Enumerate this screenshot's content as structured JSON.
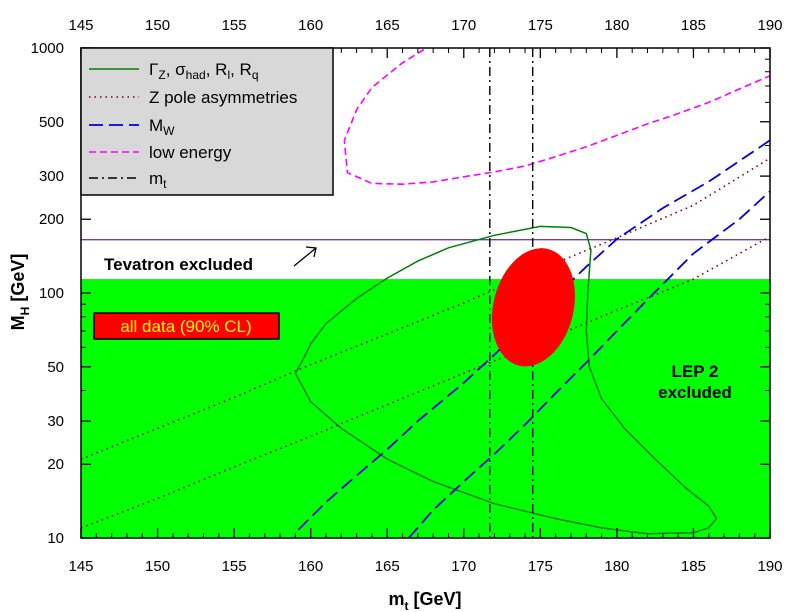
{
  "chart_data": {
    "type": "line",
    "x_range": [
      145,
      190
    ],
    "y_range": [
      10,
      1000
    ],
    "y_scale": "log",
    "grid": false,
    "xlabel_main": "m",
    "xlabel_sub": "t",
    "xlabel_unit": " [GeV]",
    "ylabel_main": "M",
    "ylabel_sub": "H",
    "ylabel_unit": " [GeV]",
    "x_ticks": [
      145,
      150,
      155,
      160,
      165,
      170,
      175,
      180,
      185,
      190
    ],
    "y_ticks": [
      10,
      20,
      30,
      50,
      100,
      200,
      300,
      500,
      1000
    ],
    "legend_position": "top-left",
    "legend": [
      {
        "key": "gz",
        "style": "solid",
        "color": "#008000",
        "text": "Γ",
        "sub": "Z",
        "text2": ", σ",
        "sub2": "had",
        "text3": ", R",
        "sub3": "l",
        "text4": ", R",
        "sub4": "q"
      },
      {
        "key": "zpole",
        "style": "dotted",
        "color": "#800000",
        "text": "Z pole asymmetries"
      },
      {
        "key": "mw",
        "style": "dashed",
        "color": "#0000e0",
        "text": "M",
        "sub": "W"
      },
      {
        "key": "lowe",
        "style": "dashed",
        "color": "#ff00ff",
        "text": "low energy"
      },
      {
        "key": "mt",
        "style": "dashdot",
        "color": "#000000",
        "text": "m",
        "sub": "t"
      }
    ],
    "excluded_regions": {
      "lep2_mh_below": 114,
      "lep2_color": "#00ff00",
      "lep2_label_line1": "LEP 2",
      "lep2_label_line2": "excluded",
      "tevatron_mh": 165,
      "tevatron_color": "#6040c0",
      "tevatron_label": "Tevatron excluded"
    },
    "all_data_ellipse": {
      "label": "all data (90% CL)",
      "color": "#ff0000",
      "mt_min": 171.8,
      "mt_max": 177.3,
      "mh_min": 49,
      "mh_max": 156
    },
    "mt_band": [
      171.7,
      174.5
    ],
    "series": [
      {
        "key": "gz",
        "points": [
          [
            178.3,
            150
          ],
          [
            178,
            175
          ],
          [
            177,
            185
          ],
          [
            175,
            187
          ],
          [
            172,
            172
          ],
          [
            169,
            153
          ],
          [
            167,
            135
          ],
          [
            165,
            115
          ],
          [
            163,
            95
          ],
          [
            161,
            75
          ],
          [
            160,
            62
          ],
          [
            159.6,
            55
          ],
          [
            159,
            47
          ],
          [
            160,
            36
          ],
          [
            162,
            28
          ],
          [
            165,
            21
          ],
          [
            168,
            17
          ],
          [
            172,
            13.8
          ],
          [
            176,
            12
          ],
          [
            179,
            11
          ],
          [
            182,
            10.4
          ],
          [
            185,
            10.5
          ],
          [
            186,
            11
          ],
          [
            186.5,
            12
          ],
          [
            186,
            13.5
          ],
          [
            184.5,
            16
          ],
          [
            182.5,
            21
          ],
          [
            180.5,
            28
          ],
          [
            179,
            37
          ],
          [
            178.2,
            50
          ],
          [
            178,
            70
          ],
          [
            178.1,
            100
          ],
          [
            178.3,
            150
          ]
        ]
      },
      {
        "key": "zpole_upper",
        "points": [
          [
            145,
            21
          ],
          [
            150,
            28
          ],
          [
            155,
            37.5
          ],
          [
            160,
            51
          ],
          [
            165,
            68
          ],
          [
            170,
            91
          ],
          [
            175,
            125
          ],
          [
            180,
            168
          ],
          [
            185,
            228
          ],
          [
            190,
            355
          ]
        ]
      },
      {
        "key": "zpole_lower",
        "points": [
          [
            145,
            11
          ],
          [
            150,
            14.5
          ],
          [
            155,
            19.5
          ],
          [
            160,
            26
          ],
          [
            165,
            35
          ],
          [
            170,
            47
          ],
          [
            175,
            63
          ],
          [
            180,
            85
          ],
          [
            185,
            114
          ],
          [
            190,
            170
          ]
        ]
      },
      {
        "key": "mw_upper",
        "points": [
          [
            159.2,
            10.8
          ],
          [
            161,
            14
          ],
          [
            163,
            18
          ],
          [
            165,
            23
          ],
          [
            167,
            30
          ],
          [
            170,
            43
          ],
          [
            172,
            56
          ],
          [
            174,
            74
          ],
          [
            176,
            97
          ],
          [
            178,
            128
          ],
          [
            180,
            166
          ],
          [
            183,
            222
          ],
          [
            186,
            285
          ],
          [
            190,
            420
          ]
        ]
      },
      {
        "key": "mw_lower",
        "points": [
          [
            166.4,
            10
          ],
          [
            168,
            13
          ],
          [
            170,
            17
          ],
          [
            172,
            22
          ],
          [
            174,
            29
          ],
          [
            176,
            39
          ],
          [
            178,
            52
          ],
          [
            180,
            70
          ],
          [
            182,
            94
          ],
          [
            185,
            145
          ],
          [
            188,
            200
          ],
          [
            190,
            260
          ]
        ]
      },
      {
        "key": "lowe",
        "points": [
          [
            168,
            1040
          ],
          [
            166,
            870
          ],
          [
            164,
            690
          ],
          [
            163,
            560
          ],
          [
            162.2,
            420
          ],
          [
            162.4,
            310
          ],
          [
            164,
            280
          ],
          [
            166,
            278
          ],
          [
            168,
            284
          ],
          [
            170,
            298
          ],
          [
            172,
            312
          ],
          [
            174,
            330
          ],
          [
            176,
            360
          ],
          [
            178,
            395
          ],
          [
            180,
            440
          ],
          [
            182,
            490
          ],
          [
            184,
            540
          ],
          [
            186,
            600
          ],
          [
            188,
            680
          ],
          [
            190,
            770
          ]
        ]
      }
    ]
  }
}
